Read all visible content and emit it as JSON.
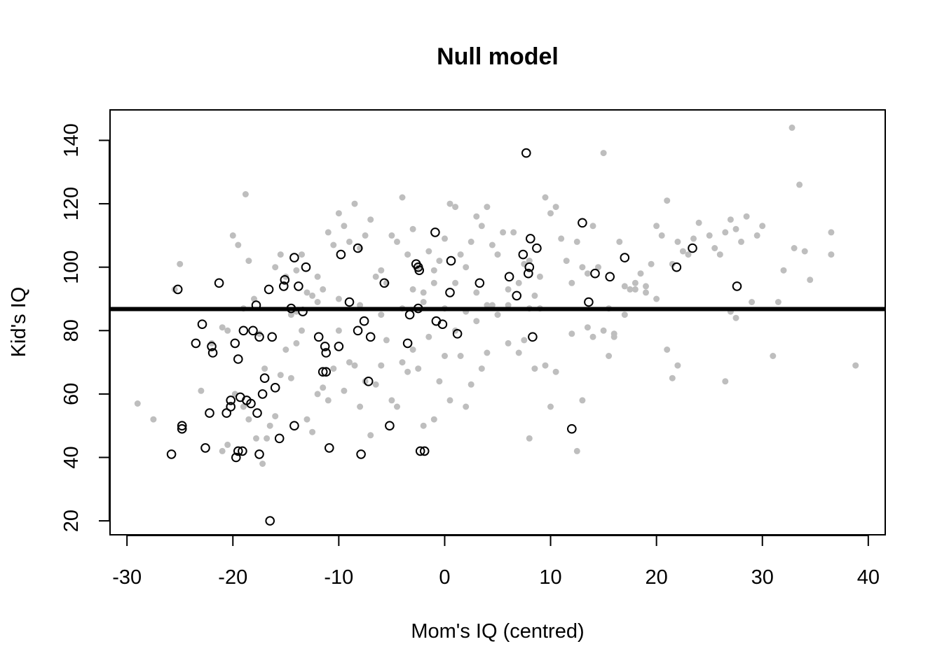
{
  "chart_data": {
    "type": "scatter",
    "title": "Null model",
    "xlabel": "Mom's IQ (centred)",
    "ylabel": "Kid's IQ",
    "xlim": [
      -31.6,
      41.6
    ],
    "ylim": [
      15.6,
      149.6
    ],
    "x_ticks": [
      -30,
      -20,
      -10,
      0,
      10,
      20,
      30,
      40
    ],
    "y_ticks": [
      20,
      40,
      60,
      80,
      100,
      120,
      140
    ],
    "grid": false,
    "legend": "none",
    "colors": {
      "grey_points": "#bebebe",
      "open_points": "#000000",
      "line": "#000000"
    },
    "reference_line": {
      "type": "horizontal",
      "y": 86.8
    },
    "series": [
      {
        "marker": "filled-grey",
        "points": [
          [
            -29,
            57
          ],
          [
            -27.5,
            52
          ],
          [
            -25,
            101
          ],
          [
            -25.5,
            93
          ],
          [
            -23,
            61
          ],
          [
            -21,
            81
          ],
          [
            -20.5,
            80
          ],
          [
            -20,
            110
          ],
          [
            -19.5,
            107
          ],
          [
            -19,
            87
          ],
          [
            -18.8,
            123
          ],
          [
            -18.5,
            102
          ],
          [
            -18,
            90
          ],
          [
            -17.5,
            79
          ],
          [
            -17,
            68
          ],
          [
            -16.5,
            50
          ],
          [
            -16,
            100
          ],
          [
            -15.5,
            104
          ],
          [
            -15,
            97
          ],
          [
            -14.5,
            85
          ],
          [
            -14,
            99
          ],
          [
            -13.5,
            104
          ],
          [
            -13,
            92
          ],
          [
            -12.5,
            91
          ],
          [
            -12,
            97
          ],
          [
            -11.5,
            93
          ],
          [
            -11,
            111
          ],
          [
            -10.5,
            107
          ],
          [
            -10,
            117
          ],
          [
            -9.5,
            113
          ],
          [
            -9,
            108
          ],
          [
            -8.5,
            120
          ],
          [
            -8,
            106
          ],
          [
            -7.5,
            110
          ],
          [
            -7,
            115
          ],
          [
            -6.5,
            97
          ],
          [
            -6,
            99
          ],
          [
            -5.5,
            95
          ],
          [
            -5,
            110
          ],
          [
            -4.5,
            108
          ],
          [
            -4,
            122
          ],
          [
            -3.5,
            104
          ],
          [
            -3,
            112
          ],
          [
            -2.5,
            100
          ],
          [
            -2,
            92
          ],
          [
            -1.5,
            105
          ],
          [
            -1,
            99
          ],
          [
            -0.5,
            102
          ],
          [
            0,
            109
          ],
          [
            0.5,
            120
          ],
          [
            1,
            119
          ],
          [
            1.5,
            104
          ],
          [
            2,
            100
          ],
          [
            2.5,
            108
          ],
          [
            3,
            116
          ],
          [
            3.5,
            113
          ],
          [
            4,
            119
          ],
          [
            4.5,
            107
          ],
          [
            5,
            104
          ],
          [
            5.5,
            111
          ],
          [
            6,
            93
          ],
          [
            6.5,
            111
          ],
          [
            7,
            95
          ],
          [
            7.5,
            101
          ],
          [
            8,
            102
          ],
          [
            8.5,
            91
          ],
          [
            9,
            97
          ],
          [
            9.5,
            122
          ],
          [
            10,
            117
          ],
          [
            10.5,
            119
          ],
          [
            11,
            109
          ],
          [
            11.5,
            102
          ],
          [
            12,
            95
          ],
          [
            12.5,
            108
          ],
          [
            13,
            100
          ],
          [
            13.5,
            98
          ],
          [
            14,
            113
          ],
          [
            14.5,
            100
          ],
          [
            15,
            136
          ],
          [
            15.5,
            87
          ],
          [
            16,
            79
          ],
          [
            16.5,
            108
          ],
          [
            17,
            94
          ],
          [
            17.5,
            93
          ],
          [
            18,
            95
          ],
          [
            18.5,
            98
          ],
          [
            19,
            94
          ],
          [
            19.5,
            101
          ],
          [
            20,
            113
          ],
          [
            20.5,
            110
          ],
          [
            21,
            121
          ],
          [
            21.5,
            101
          ],
          [
            22,
            108
          ],
          [
            22.5,
            105
          ],
          [
            23,
            104
          ],
          [
            23.5,
            109
          ],
          [
            24,
            114
          ],
          [
            25,
            110
          ],
          [
            25.5,
            106
          ],
          [
            26,
            104
          ],
          [
            26.5,
            111
          ],
          [
            27,
            115
          ],
          [
            27.5,
            112
          ],
          [
            28,
            108
          ],
          [
            28.5,
            116
          ],
          [
            29,
            89
          ],
          [
            29.5,
            110
          ],
          [
            30,
            113
          ],
          [
            31,
            72
          ],
          [
            31.5,
            89
          ],
          [
            32,
            99
          ],
          [
            32.8,
            144
          ],
          [
            33,
            106
          ],
          [
            33.5,
            126
          ],
          [
            34,
            105
          ],
          [
            34.5,
            96
          ],
          [
            36.5,
            111
          ],
          [
            36.5,
            104
          ],
          [
            38.8,
            69
          ],
          [
            -22,
            76
          ],
          [
            -21,
            42
          ],
          [
            -20.5,
            44
          ],
          [
            -19.8,
            60
          ],
          [
            -19,
            56
          ],
          [
            -18.5,
            52
          ],
          [
            -17.8,
            46
          ],
          [
            -17.2,
            38
          ],
          [
            -16.8,
            46
          ],
          [
            -16,
            53
          ],
          [
            -15.5,
            66
          ],
          [
            -15,
            74
          ],
          [
            -14.5,
            65
          ],
          [
            -14,
            76
          ],
          [
            -13.5,
            80
          ],
          [
            -13,
            52
          ],
          [
            -12.5,
            48
          ],
          [
            -12,
            60
          ],
          [
            -11.5,
            62
          ],
          [
            -11,
            58
          ],
          [
            -10.5,
            68
          ],
          [
            -10,
            80
          ],
          [
            -9.5,
            61
          ],
          [
            -9,
            70
          ],
          [
            -8.5,
            69
          ],
          [
            -8,
            56
          ],
          [
            -7.5,
            64
          ],
          [
            -7,
            47
          ],
          [
            -6.5,
            63
          ],
          [
            -6,
            69
          ],
          [
            -5.5,
            77
          ],
          [
            -5,
            58
          ],
          [
            -4.5,
            56
          ],
          [
            -4,
            70
          ],
          [
            -3.5,
            67
          ],
          [
            -3,
            74
          ],
          [
            -2.5,
            68
          ],
          [
            -2,
            50
          ],
          [
            -1.5,
            78
          ],
          [
            -1,
            52
          ],
          [
            -0.5,
            64
          ],
          [
            0,
            72
          ],
          [
            0.5,
            58
          ],
          [
            1,
            80
          ],
          [
            1.5,
            72
          ],
          [
            2,
            56
          ],
          [
            2.5,
            63
          ],
          [
            3,
            83
          ],
          [
            3.5,
            68
          ],
          [
            4,
            73
          ],
          [
            4.5,
            88
          ],
          [
            5,
            85
          ],
          [
            6,
            76
          ],
          [
            7,
            73
          ],
          [
            7.5,
            77
          ],
          [
            8,
            46
          ],
          [
            8.5,
            68
          ],
          [
            9,
            87
          ],
          [
            9.5,
            69
          ],
          [
            10,
            56
          ],
          [
            10.5,
            67
          ],
          [
            12,
            79
          ],
          [
            12.5,
            42
          ],
          [
            13,
            58
          ],
          [
            13.5,
            81
          ],
          [
            14,
            78
          ],
          [
            15,
            80
          ],
          [
            15.5,
            72
          ],
          [
            16,
            78
          ],
          [
            17,
            85
          ],
          [
            18,
            93
          ],
          [
            19,
            92
          ],
          [
            20,
            90
          ],
          [
            21,
            74
          ],
          [
            21.5,
            65
          ],
          [
            22,
            69
          ],
          [
            26.5,
            64
          ],
          [
            27,
            86
          ],
          [
            27.5,
            84
          ],
          [
            -8,
            88
          ],
          [
            -6,
            85
          ],
          [
            -4,
            87
          ],
          [
            -2,
            89
          ],
          [
            0,
            87
          ],
          [
            2,
            86
          ],
          [
            4,
            88
          ],
          [
            6,
            88
          ],
          [
            8,
            87
          ],
          [
            -12,
            89
          ],
          [
            -10,
            90
          ],
          [
            -14,
            86
          ],
          [
            1,
            95
          ],
          [
            3,
            92
          ],
          [
            -1,
            95
          ],
          [
            -3,
            93
          ]
        ]
      },
      {
        "marker": "open-black",
        "points": [
          [
            -25.8,
            41
          ],
          [
            -25.2,
            93
          ],
          [
            -24.8,
            50
          ],
          [
            -24.8,
            49
          ],
          [
            -23.5,
            76
          ],
          [
            -22.9,
            82
          ],
          [
            -22.6,
            43
          ],
          [
            -22.2,
            54
          ],
          [
            -22,
            75
          ],
          [
            -21.9,
            73
          ],
          [
            -21.3,
            95
          ],
          [
            -20.6,
            54
          ],
          [
            -20.2,
            56
          ],
          [
            -20.2,
            58
          ],
          [
            -19.8,
            76
          ],
          [
            -19.7,
            40
          ],
          [
            -19.5,
            42
          ],
          [
            -19.5,
            71
          ],
          [
            -19.3,
            59
          ],
          [
            -19.1,
            42
          ],
          [
            -19,
            80
          ],
          [
            -18.7,
            58
          ],
          [
            -18.3,
            57
          ],
          [
            -18.1,
            80
          ],
          [
            -17.8,
            88
          ],
          [
            -17.7,
            54
          ],
          [
            -17.5,
            78
          ],
          [
            -17.5,
            41
          ],
          [
            -17.2,
            60
          ],
          [
            -17,
            65
          ],
          [
            -16.6,
            93
          ],
          [
            -16.5,
            20
          ],
          [
            -16.3,
            78
          ],
          [
            -16,
            62
          ],
          [
            -15.6,
            46
          ],
          [
            -15.2,
            94
          ],
          [
            -15.1,
            96
          ],
          [
            -14.5,
            87
          ],
          [
            -14.2,
            103
          ],
          [
            -14.2,
            50
          ],
          [
            -13.8,
            94
          ],
          [
            -13.4,
            86
          ],
          [
            -13.1,
            100
          ],
          [
            -11.9,
            78
          ],
          [
            -11.5,
            67
          ],
          [
            -11.3,
            75
          ],
          [
            -11.2,
            73
          ],
          [
            -11.2,
            67
          ],
          [
            -10.9,
            43
          ],
          [
            -10,
            75
          ],
          [
            -9.8,
            104
          ],
          [
            -9,
            89
          ],
          [
            -8.2,
            106
          ],
          [
            -8.2,
            80
          ],
          [
            -7.9,
            41
          ],
          [
            -7.6,
            83
          ],
          [
            -7.2,
            64
          ],
          [
            -7,
            78
          ],
          [
            -5.7,
            95
          ],
          [
            -5.2,
            50
          ],
          [
            -3.5,
            76
          ],
          [
            -3.3,
            85
          ],
          [
            -2.7,
            101
          ],
          [
            -2.5,
            87
          ],
          [
            -2.5,
            100
          ],
          [
            -2.4,
            99
          ],
          [
            -2.3,
            42
          ],
          [
            -1.9,
            42
          ],
          [
            -0.9,
            111
          ],
          [
            -0.8,
            83
          ],
          [
            -0.2,
            82
          ],
          [
            0.5,
            92
          ],
          [
            0.6,
            102
          ],
          [
            1.2,
            79
          ],
          [
            3.3,
            95
          ],
          [
            6.1,
            97
          ],
          [
            6.8,
            91
          ],
          [
            7.4,
            104
          ],
          [
            7.7,
            136
          ],
          [
            7.9,
            98
          ],
          [
            8,
            100
          ],
          [
            8.1,
            109
          ],
          [
            8.3,
            78
          ],
          [
            8.7,
            106
          ],
          [
            12,
            49
          ],
          [
            13,
            114
          ],
          [
            13.6,
            89
          ],
          [
            14.2,
            98
          ],
          [
            15.6,
            97
          ],
          [
            17,
            103
          ],
          [
            21.9,
            100
          ],
          [
            23.4,
            106
          ],
          [
            27.6,
            94
          ]
        ]
      }
    ]
  }
}
